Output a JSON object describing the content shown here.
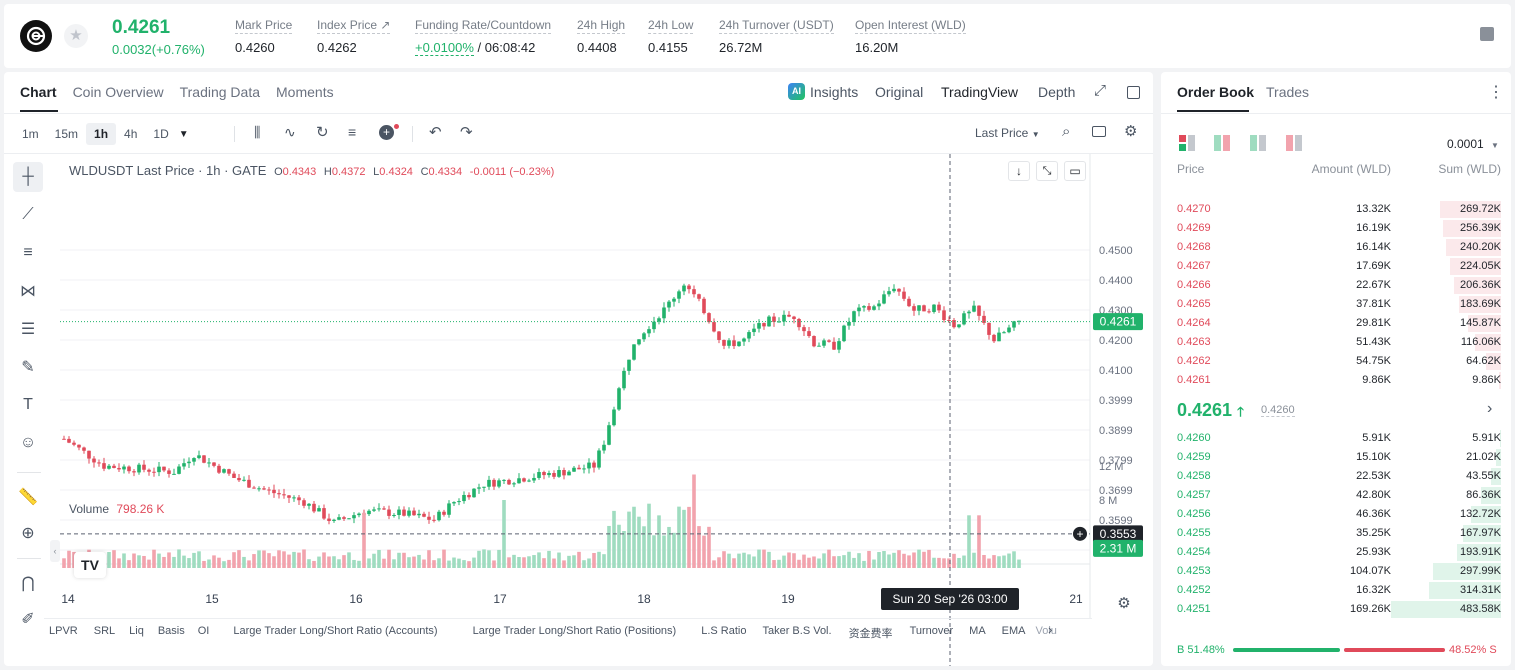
{
  "header": {
    "last_price": "0.4261",
    "change": "0.0032(+0.76%)",
    "stats": [
      {
        "label": "Mark Price",
        "value": "0.4260"
      },
      {
        "label": "Index Price ↗",
        "value": "0.4262"
      },
      {
        "label": "Funding Rate/Countdown",
        "value_green": "+0.0100%",
        "value": "/ 06:08:42"
      },
      {
        "label": "24h High",
        "value": "0.4408"
      },
      {
        "label": "24h Low",
        "value": "0.4155"
      },
      {
        "label": "24h Turnover (USDT)",
        "value": "26.72M"
      },
      {
        "label": "Open Interest (WLD)",
        "value": "16.20M"
      }
    ]
  },
  "chart_tabs": [
    "Chart",
    "Coin Overview",
    "Trading Data",
    "Moments"
  ],
  "view_tabs": {
    "insights": "Insights",
    "original": "Original",
    "tradingview": "TradingView",
    "depth": "Depth"
  },
  "timeframes": [
    "1m",
    "15m",
    "1h",
    "4h",
    "1D"
  ],
  "price_type": "Last Price",
  "legend": {
    "symbol": "WLDUSDT Last Price · 1h · GATE",
    "o": "0.4343",
    "h": "0.4372",
    "l": "0.4324",
    "c": "0.4334",
    "chg": "-0.0011 (−0.23%)"
  },
  "volume_legend": {
    "label": "Volume",
    "value": "798.26 K"
  },
  "current_price_tag": "0.4261",
  "crosshair_price_tag": "0.3553",
  "crosshair_time_tag": "Sun 20 Sep '26   03:00",
  "volume_tag": "2.31 M",
  "price_axis": [
    "0.4500",
    "0.4400",
    "0.4300",
    "0.4200",
    "0.4100",
    "0.3999",
    "0.3899",
    "0.3799",
    "0.3699",
    "0.3599",
    "0.3499"
  ],
  "volume_axis": [
    "12 M",
    "8 M",
    "4 M"
  ],
  "date_axis": [
    "14",
    "15",
    "16",
    "17",
    "18",
    "19",
    "21"
  ],
  "indicators": [
    "LPVR",
    "SRL",
    "Liq",
    "Basis",
    "OI",
    "Large Trader Long/Short Ratio (Accounts)",
    "Large Trader Long/Short Ratio (Positions)",
    "L.S Ratio",
    "Taker B.S Vol.",
    "资金费率",
    "Turnover",
    "MA",
    "EMA",
    "Volu"
  ],
  "colors": {
    "up": "#21b26b",
    "down": "#e04a5a",
    "up_vol": "#9fdcc0",
    "down_vol": "#f2a3ad"
  },
  "chart_data": {
    "type": "candlestick",
    "interval": "1h",
    "ylim": [
      0.3499,
      0.45
    ],
    "x_labels": [
      "14",
      "15",
      "16",
      "17",
      "18",
      "19",
      "21"
    ],
    "series": [
      {
        "name": "WLDUSDT",
        "anchors": [
          [
            0,
            0.387
          ],
          [
            8,
            0.378
          ],
          [
            22,
            0.376
          ],
          [
            26,
            0.382
          ],
          [
            34,
            0.374
          ],
          [
            40,
            0.37
          ],
          [
            48,
            0.366
          ],
          [
            54,
            0.359
          ],
          [
            60,
            0.363
          ],
          [
            68,
            0.362
          ],
          [
            74,
            0.36
          ],
          [
            78,
            0.366
          ],
          [
            84,
            0.372
          ],
          [
            92,
            0.374
          ],
          [
            100,
            0.376
          ],
          [
            106,
            0.378
          ],
          [
            108,
            0.386
          ],
          [
            110,
            0.398
          ],
          [
            114,
            0.42
          ],
          [
            120,
            0.43
          ],
          [
            124,
            0.439
          ],
          [
            128,
            0.43
          ],
          [
            132,
            0.418
          ],
          [
            136,
            0.42
          ],
          [
            140,
            0.426
          ],
          [
            146,
            0.428
          ],
          [
            150,
            0.419
          ],
          [
            154,
            0.418
          ],
          [
            158,
            0.429
          ],
          [
            162,
            0.431
          ],
          [
            166,
            0.438
          ],
          [
            170,
            0.43
          ],
          [
            174,
            0.431
          ],
          [
            178,
            0.425
          ],
          [
            182,
            0.43
          ],
          [
            186,
            0.42
          ],
          [
            191,
            0.4261
          ]
        ]
      }
    ],
    "volume_ylim": [
      0,
      12
    ]
  },
  "orderbook": {
    "tabs": [
      "Order Book",
      "Trades"
    ],
    "precision": "0.0001",
    "headers": [
      "Price",
      "Amount (WLD)",
      "Sum (WLD)"
    ],
    "asks": [
      {
        "price": "0.4270",
        "amount": "13.32K",
        "sum": "269.72K",
        "depth": 0.558
      },
      {
        "price": "0.4269",
        "amount": "16.19K",
        "sum": "256.39K",
        "depth": 0.53
      },
      {
        "price": "0.4268",
        "amount": "16.14K",
        "sum": "240.20K",
        "depth": 0.497
      },
      {
        "price": "0.4267",
        "amount": "17.69K",
        "sum": "224.05K",
        "depth": 0.463
      },
      {
        "price": "0.4266",
        "amount": "22.67K",
        "sum": "206.36K",
        "depth": 0.427
      },
      {
        "price": "0.4265",
        "amount": "37.81K",
        "sum": "183.69K",
        "depth": 0.38
      },
      {
        "price": "0.4264",
        "amount": "29.81K",
        "sum": "145.87K",
        "depth": 0.302
      },
      {
        "price": "0.4263",
        "amount": "51.43K",
        "sum": "116.06K",
        "depth": 0.24
      },
      {
        "price": "0.4262",
        "amount": "54.75K",
        "sum": "64.62K",
        "depth": 0.134
      },
      {
        "price": "0.4261",
        "amount": "9.86K",
        "sum": "9.86K",
        "depth": 0.02
      }
    ],
    "mid_price": "0.4261",
    "mid_mark": "0.4260",
    "bids": [
      {
        "price": "0.4260",
        "amount": "5.91K",
        "sum": "5.91K",
        "depth": 0.012
      },
      {
        "price": "0.4259",
        "amount": "15.10K",
        "sum": "21.02K",
        "depth": 0.043
      },
      {
        "price": "0.4258",
        "amount": "22.53K",
        "sum": "43.55K",
        "depth": 0.09
      },
      {
        "price": "0.4257",
        "amount": "42.80K",
        "sum": "86.36K",
        "depth": 0.179
      },
      {
        "price": "0.4256",
        "amount": "46.36K",
        "sum": "132.72K",
        "depth": 0.274
      },
      {
        "price": "0.4255",
        "amount": "35.25K",
        "sum": "167.97K",
        "depth": 0.347
      },
      {
        "price": "0.4254",
        "amount": "25.93K",
        "sum": "193.91K",
        "depth": 0.401
      },
      {
        "price": "0.4253",
        "amount": "104.07K",
        "sum": "297.99K",
        "depth": 0.616
      },
      {
        "price": "0.4252",
        "amount": "16.32K",
        "sum": "314.31K",
        "depth": 0.65
      },
      {
        "price": "0.4251",
        "amount": "169.26K",
        "sum": "483.58K",
        "depth": 1.0
      }
    ],
    "buy_ratio": "51.48%",
    "sell_ratio": "48.52%",
    "buy_label": "B",
    "sell_label": "S",
    "buy_fraction": 0.5148
  }
}
